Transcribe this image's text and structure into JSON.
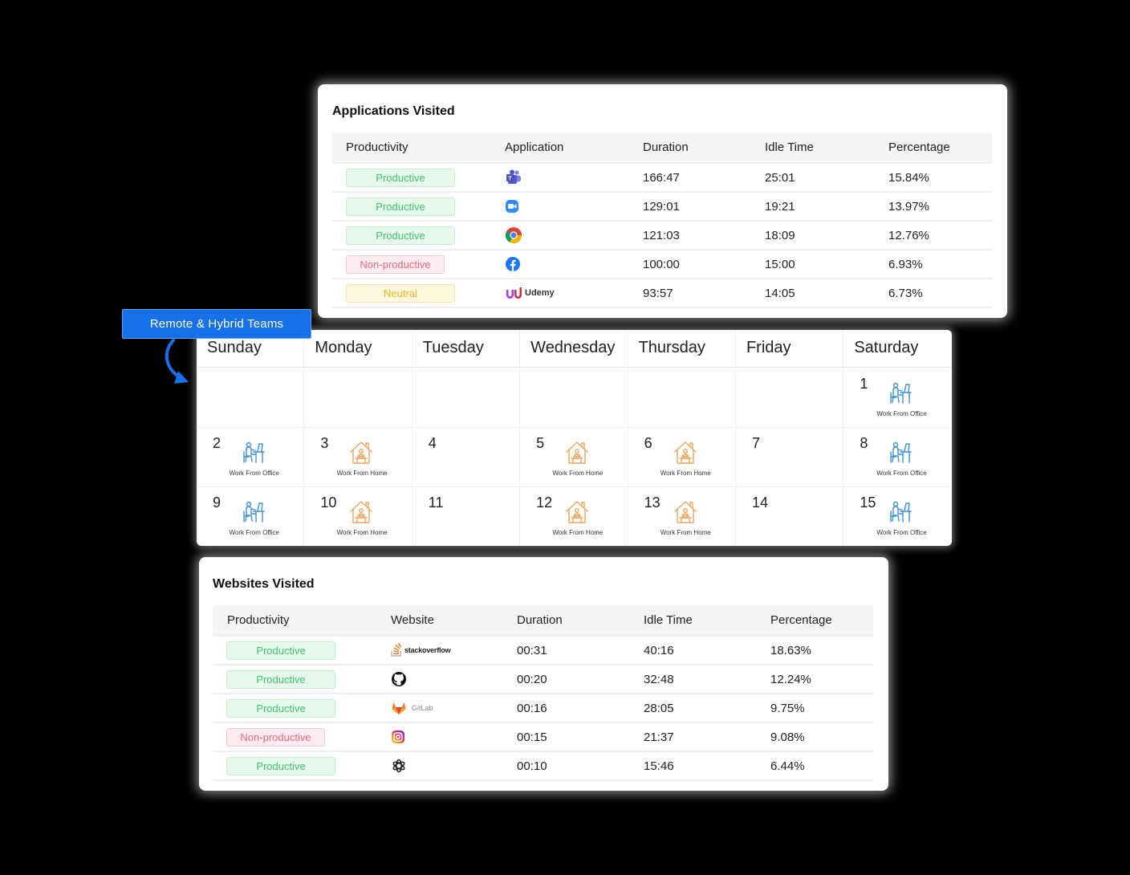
{
  "applications": {
    "title": "Applications Visited",
    "columns": [
      "Productivity",
      "Application",
      "Duration",
      "Idle Time",
      "Percentage"
    ],
    "rows": [
      {
        "productivity": "Productive",
        "status": "productive",
        "app_icon": "teams-icon",
        "duration": "166:47",
        "idle": "25:01",
        "percentage": "15.84%"
      },
      {
        "productivity": "Productive",
        "status": "productive",
        "app_icon": "zoom-icon",
        "duration": "129:01",
        "idle": "19:21",
        "percentage": "13.97%"
      },
      {
        "productivity": "Productive",
        "status": "productive",
        "app_icon": "chrome-icon",
        "duration": "121:03",
        "idle": "18:09",
        "percentage": "12.76%"
      },
      {
        "productivity": "Non-productive",
        "status": "nonproductive",
        "app_icon": "facebook-icon",
        "duration": "100:00",
        "idle": "15:00",
        "percentage": "6.93%"
      },
      {
        "productivity": "Neutral",
        "status": "neutral",
        "app_icon": "udemy-icon",
        "app_text": "Udemy",
        "duration": "93:57",
        "idle": "14:05",
        "percentage": "6.73%"
      }
    ]
  },
  "remote_button": {
    "label": "Remote & Hybrid Teams"
  },
  "calendar": {
    "days": [
      "Sunday",
      "Monday",
      "Tuesday",
      "Wednesday",
      "Thursday",
      "Friday",
      "Saturday"
    ],
    "weeks": [
      [
        null,
        null,
        null,
        null,
        null,
        null,
        {
          "date": "1",
          "mode": "Work From Office"
        }
      ],
      [
        {
          "date": "2",
          "mode": "Work From Office"
        },
        {
          "date": "3",
          "mode": "Work From Home"
        },
        {
          "date": "4"
        },
        {
          "date": "5",
          "mode": "Work From Home"
        },
        {
          "date": "6",
          "mode": "Work From Home"
        },
        {
          "date": "7"
        },
        {
          "date": "8",
          "mode": "Work From Office"
        }
      ],
      [
        {
          "date": "9",
          "mode": "Work From Office"
        },
        {
          "date": "10",
          "mode": "Work From Home"
        },
        {
          "date": "11"
        },
        {
          "date": "12",
          "mode": "Work From Home"
        },
        {
          "date": "13",
          "mode": "Work From Home"
        },
        {
          "date": "14"
        },
        {
          "date": "15",
          "mode": "Work From Office"
        }
      ]
    ]
  },
  "websites": {
    "title": "Websites Visited",
    "columns": [
      "Productivity",
      "Website",
      "Duration",
      "Idle Time",
      "Percentage"
    ],
    "rows": [
      {
        "productivity": "Productive",
        "status": "productive",
        "site_icon": "stackoverflow-icon",
        "site_text": "stackoverflow",
        "duration": "00:31",
        "idle": "40:16",
        "percentage": "18.63%"
      },
      {
        "productivity": "Productive",
        "status": "productive",
        "site_icon": "github-icon",
        "duration": "00:20",
        "idle": "32:48",
        "percentage": "12.24%"
      },
      {
        "productivity": "Productive",
        "status": "productive",
        "site_icon": "gitlab-icon",
        "site_text": "GitLab",
        "duration": "00:16",
        "idle": "28:05",
        "percentage": "9.75%"
      },
      {
        "productivity": "Non-productive",
        "status": "nonproductive",
        "site_icon": "instagram-icon",
        "duration": "00:15",
        "idle": "21:37",
        "percentage": "9.08%"
      },
      {
        "productivity": "Productive",
        "status": "productive",
        "site_icon": "openai-icon",
        "duration": "00:10",
        "idle": "15:46",
        "percentage": "6.44%"
      }
    ]
  },
  "colors": {
    "accent_blue": "#1670e8",
    "productive": "#3cc46a",
    "non_productive": "#e8697d",
    "neutral": "#e4b62a",
    "office_icon": "#3b8fd9",
    "home_icon": "#f0a45a"
  }
}
